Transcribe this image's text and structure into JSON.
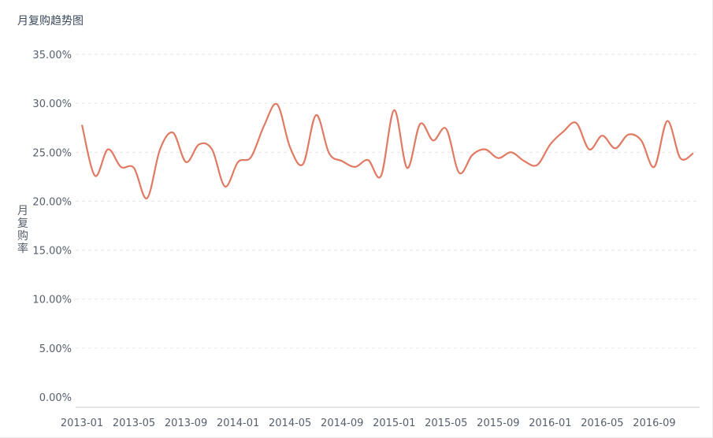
{
  "chart_data": {
    "type": "line",
    "title": "月复购趋势图",
    "xlabel": "",
    "ylabel": "月复购率",
    "y_unit": "%",
    "ylim": [
      0,
      35
    ],
    "y_ticks": [
      "0.00%",
      "5.00%",
      "10.00%",
      "15.00%",
      "20.00%",
      "25.00%",
      "30.00%",
      "35.00%"
    ],
    "x_tick_labels": [
      "2013-01",
      "2013-05",
      "2013-09",
      "2014-01",
      "2014-05",
      "2014-09",
      "2015-01",
      "2015-05",
      "2015-09",
      "2016-01",
      "2016-05",
      "2016-09"
    ],
    "grid": true,
    "line_color": "#e07a63",
    "x": [
      "2013-01",
      "2013-02",
      "2013-03",
      "2013-04",
      "2013-05",
      "2013-06",
      "2013-07",
      "2013-08",
      "2013-09",
      "2013-10",
      "2013-11",
      "2013-12",
      "2014-01",
      "2014-02",
      "2014-03",
      "2014-04",
      "2014-05",
      "2014-06",
      "2014-07",
      "2014-08",
      "2014-09",
      "2014-10",
      "2014-11",
      "2014-12",
      "2015-01",
      "2015-02",
      "2015-03",
      "2015-04",
      "2015-05",
      "2015-06",
      "2015-07",
      "2015-08",
      "2015-09",
      "2015-10",
      "2015-11",
      "2015-12",
      "2016-01",
      "2016-02",
      "2016-03",
      "2016-04",
      "2016-05",
      "2016-06",
      "2016-07",
      "2016-08",
      "2016-09",
      "2016-10",
      "2016-11",
      "2016-12"
    ],
    "series": [
      {
        "values": [
          27.8,
          22.6,
          25.3,
          23.5,
          23.4,
          20.3,
          25.3,
          27.0,
          24.0,
          25.8,
          25.3,
          21.5,
          24.0,
          24.5,
          27.7,
          29.9,
          25.5,
          23.8,
          28.8,
          24.9,
          24.1,
          23.5,
          24.2,
          22.6,
          29.3,
          23.4,
          27.9,
          26.2,
          27.4,
          22.9,
          24.7,
          25.3,
          24.4,
          25.0,
          24.1,
          23.7,
          25.8,
          27.1,
          28.0,
          25.3,
          26.7,
          25.4,
          26.8,
          26.2,
          23.5,
          28.2,
          24.4,
          24.9
        ]
      }
    ]
  }
}
